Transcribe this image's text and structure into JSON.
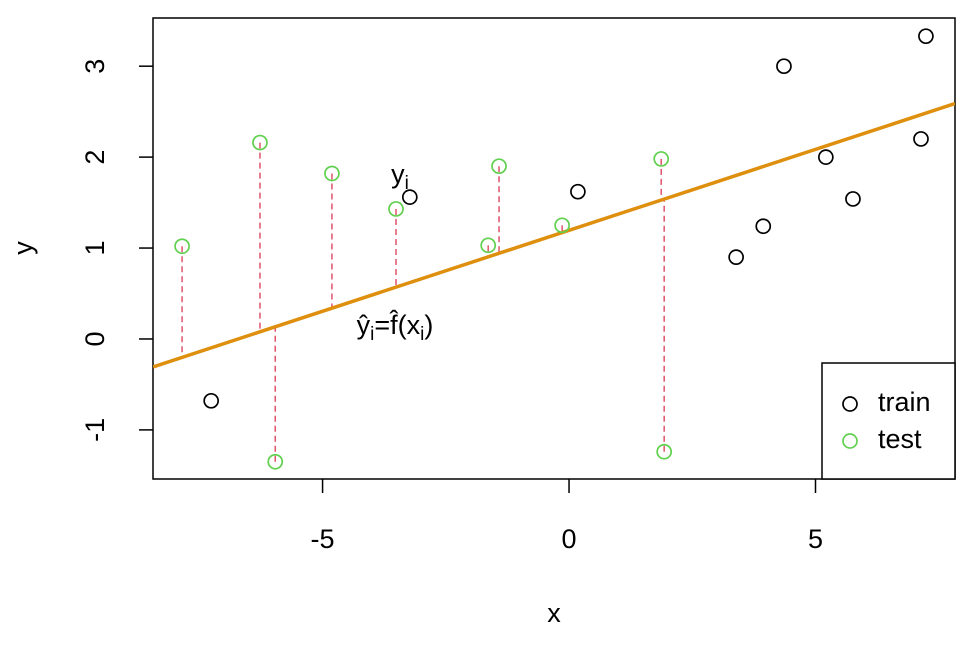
{
  "chart_data": {
    "type": "scatter",
    "xlabel": "x",
    "ylabel": "y",
    "xlim": [
      -8.44,
      7.83
    ],
    "ylim": [
      -1.54,
      3.53
    ],
    "xticks": [
      -5,
      0,
      5
    ],
    "yticks": [
      -1,
      0,
      1,
      2,
      3
    ],
    "legend": "bottom right",
    "series": [
      {
        "name": "train",
        "color": "#000000",
        "x": [
          -7.26,
          -3.23,
          0.18,
          3.39,
          3.94,
          4.36,
          5.21,
          5.76,
          7.14,
          7.24
        ],
        "values": [
          -0.68,
          1.56,
          1.62,
          0.9,
          1.24,
          3.0,
          2.0,
          1.54,
          2.2,
          3.33
        ]
      },
      {
        "name": "test",
        "color": "#61d04f",
        "x": [
          -7.85,
          -6.27,
          -5.96,
          -4.81,
          -3.51,
          -1.64,
          -1.42,
          -0.14,
          1.87,
          1.93
        ],
        "values": [
          1.02,
          2.16,
          -1.35,
          1.82,
          1.43,
          1.03,
          1.9,
          1.25,
          1.98,
          -1.24
        ]
      }
    ],
    "fit": {
      "intercept": 1.195,
      "slope": 0.178,
      "color": "#df8f0e"
    },
    "residual_color": "#df536b",
    "annotations": [
      {
        "x": -3.43,
        "y": 1.79,
        "parts": [
          {
            "text": "y"
          },
          {
            "text": "i",
            "sub": true
          }
        ]
      },
      {
        "x": -3.53,
        "y": 0.13,
        "parts": [
          {
            "text": "ŷ"
          },
          {
            "text": "i",
            "sub": true
          },
          {
            "text": "=f̂(x"
          },
          {
            "text": "i",
            "sub": true
          },
          {
            "text": ")"
          }
        ]
      }
    ]
  }
}
